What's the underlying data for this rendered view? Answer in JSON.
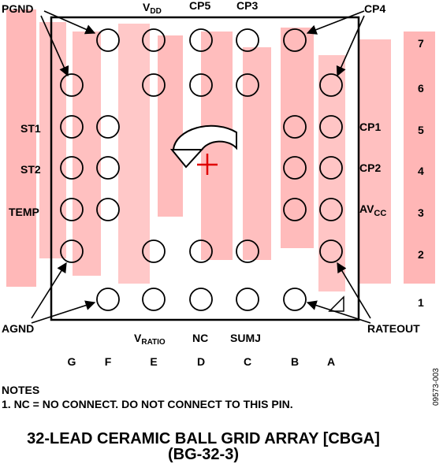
{
  "pin_labels": {
    "pgnd": "PGND",
    "vdd_main": "V",
    "vdd_sub": "DD",
    "cp5": "CP5",
    "cp3": "CP3",
    "cp4": "CP4",
    "st1": "ST1",
    "st2": "ST2",
    "temp": "TEMP",
    "agnd": "AGND",
    "cp1": "CP1",
    "cp2": "CP2",
    "avcc_main": "AV",
    "avcc_sub": "CC",
    "rateout": "RATEOUT",
    "vratio_main": "V",
    "vratio_sub": "RATIO",
    "nc": "NC",
    "sumj": "SUMJ"
  },
  "rows": [
    "7",
    "6",
    "5",
    "4",
    "3",
    "2",
    "1"
  ],
  "columns": [
    "G",
    "F",
    "E",
    "D",
    "C",
    "B",
    "A"
  ],
  "balls_present": {
    "7": [
      "F",
      "E",
      "D",
      "C",
      "B"
    ],
    "6": [
      "G",
      "E",
      "D",
      "C",
      "A"
    ],
    "5": [
      "G",
      "F",
      "B",
      "A"
    ],
    "4": [
      "G",
      "F",
      "B",
      "A"
    ],
    "3": [
      "G",
      "F",
      "B",
      "A"
    ],
    "2": [
      "G",
      "E",
      "D",
      "C",
      "A"
    ],
    "1": [
      "F",
      "E",
      "D",
      "C",
      "B"
    ]
  },
  "notes": {
    "heading": "NOTES",
    "line1": "1. NC = NO CONNECT. DO NOT CONNECT TO THIS PIN."
  },
  "figure_code": "09573-003",
  "title": {
    "line1": "32-LEAD CERAMIC BALL GRID ARRAY [CBGA]",
    "line2": "(BG-32-3)"
  },
  "colors": {
    "ink": "#000000",
    "watermark": "#ff4a4a",
    "background": "#ffffff"
  }
}
